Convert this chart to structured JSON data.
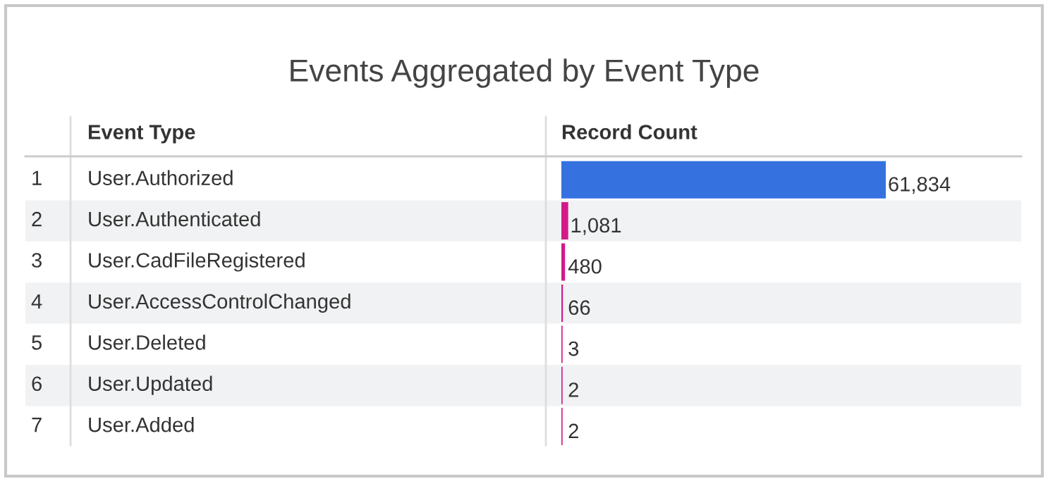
{
  "chart_data": {
    "type": "bar",
    "orientation": "horizontal",
    "title": "Events Aggregated by Event Type",
    "ylabel": "Event Type",
    "xlabel": "Record Count",
    "categories": [
      "User.Authorized",
      "User.Authenticated",
      "User.CadFileRegistered",
      "User.AccessControlChanged",
      "User.Deleted",
      "User.Updated",
      "User.Added"
    ],
    "values": [
      61834,
      1081,
      480,
      66,
      3,
      2,
      2
    ],
    "colors": [
      "#3572e0",
      "#d5198a",
      "#d5198a",
      "#d5198a",
      "#d5198a",
      "#d5198a",
      "#d5198a"
    ],
    "value_labels": [
      "61,834",
      "1,081",
      "480",
      "66",
      "3",
      "2",
      "2"
    ],
    "annotations": [
      "1",
      "2",
      "3",
      "4",
      "5",
      "6",
      "7"
    ],
    "legend": false
  }
}
